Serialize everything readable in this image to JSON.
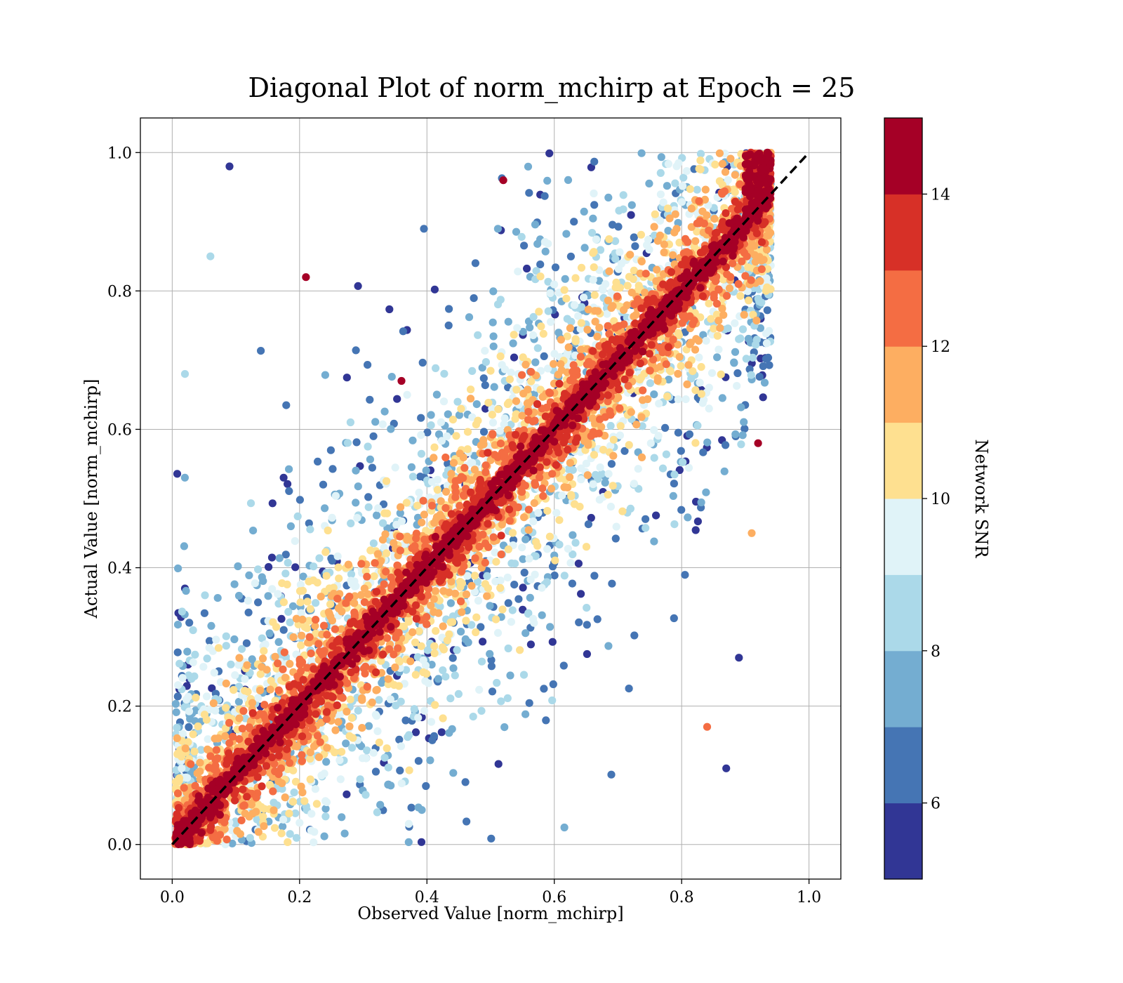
{
  "chart_data": {
    "type": "scatter",
    "title": "Diagonal Plot of norm_mchirp at Epoch = 25",
    "xlabel": "Observed Value [norm_mchirp]",
    "ylabel": "Actual Value [norm_mchirp]",
    "xlim": [
      -0.05,
      1.05
    ],
    "ylim": [
      -0.05,
      1.05
    ],
    "x_ticks": [
      0.0,
      0.2,
      0.4,
      0.6,
      0.8,
      1.0
    ],
    "y_ticks": [
      0.0,
      0.2,
      0.4,
      0.6,
      0.8,
      1.0
    ],
    "x_tick_labels": [
      "0.0",
      "0.2",
      "0.4",
      "0.6",
      "0.8",
      "1.0"
    ],
    "y_tick_labels": [
      "0.0",
      "0.2",
      "0.4",
      "0.6",
      "0.8",
      "1.0"
    ],
    "grid": true,
    "reference_line": {
      "x": [
        0.0,
        1.0
      ],
      "y": [
        0.0,
        1.0
      ],
      "style": "dashed",
      "color": "#000000"
    },
    "colorbar": {
      "label": "Network SNR",
      "range": [
        5,
        15
      ],
      "ticks": [
        6,
        8,
        10,
        12,
        14
      ],
      "tick_labels": [
        "6",
        "8",
        "10",
        "12",
        "14"
      ],
      "levels": [
        5,
        6,
        7,
        8,
        9,
        10,
        11,
        12,
        13,
        14,
        15
      ],
      "colors": [
        "#313695",
        "#4575b4",
        "#74add1",
        "#abd9e9",
        "#e0f3f8",
        "#fee090",
        "#fdae61",
        "#f46d43",
        "#d73027",
        "#a50026"
      ]
    },
    "density_description": "tens of thousands of points; high-SNR points (dark red) concentrate tightly along the diagonal, lower-SNR points (blue) scatter widely above and below it",
    "sample_points": [
      {
        "x": 0.02,
        "y": 0.68,
        "snr": 8.5
      },
      {
        "x": 0.02,
        "y": 0.37,
        "snr": 5.2
      },
      {
        "x": 0.21,
        "y": 0.82,
        "snr": 14.5
      },
      {
        "x": 0.36,
        "y": 0.67,
        "snr": 14.5
      },
      {
        "x": 0.84,
        "y": 0.17,
        "snr": 12.5
      },
      {
        "x": 0.87,
        "y": 0.11,
        "snr": 5.2
      },
      {
        "x": 0.89,
        "y": 0.27,
        "snr": 5.2
      },
      {
        "x": 0.91,
        "y": 0.45,
        "snr": 11.5
      },
      {
        "x": 0.92,
        "y": 0.58,
        "snr": 14.5
      },
      {
        "x": 0.06,
        "y": 0.85,
        "snr": 8.5
      },
      {
        "x": 0.09,
        "y": 0.98,
        "snr": 5.2
      },
      {
        "x": 0.52,
        "y": 0.96,
        "snr": 14.5
      }
    ]
  }
}
